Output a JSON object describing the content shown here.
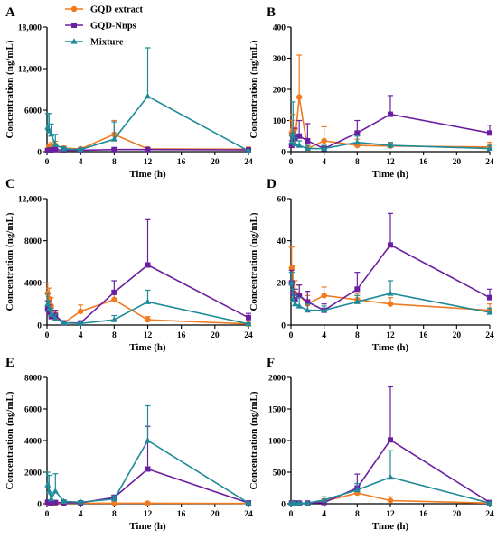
{
  "series_styles": [
    {
      "name": "GQD extract",
      "color": "#f07a1f",
      "marker": "circle"
    },
    {
      "name": "GQD-Nnps",
      "color": "#6b1fa0",
      "marker": "square"
    },
    {
      "name": "Mixture",
      "color": "#1f8a99",
      "marker": "triangle"
    }
  ],
  "chart_data": [
    {
      "panel": "A",
      "type": "line",
      "xlabel": "Time (h)",
      "ylabel": "Concentration (ng/mL)",
      "xlim": [
        0,
        24
      ],
      "xticks": [
        0,
        4,
        8,
        12,
        16,
        20,
        24
      ],
      "xtick_labels": [
        "0",
        "4",
        "8",
        "12",
        "16",
        "20",
        "24"
      ],
      "ylim": [
        0,
        18000
      ],
      "yticks": [
        0,
        6000,
        12000,
        18000
      ],
      "ytick_labels": [
        "0",
        "6000",
        "12,000",
        "18,000"
      ],
      "legend": "top-left",
      "series": [
        {
          "name": "GQD extract",
          "x": [
            0.083,
            0.25,
            0.5,
            1,
            2,
            4,
            8,
            12,
            24
          ],
          "y": [
            300,
            700,
            800,
            900,
            500,
            400,
            2500,
            400,
            350
          ],
          "err": [
            200,
            400,
            500,
            600,
            300,
            200,
            2000,
            200,
            300
          ]
        },
        {
          "name": "GQD-Nnps",
          "x": [
            0.083,
            0.25,
            0.5,
            1,
            2,
            4,
            8,
            12,
            24
          ],
          "y": [
            150,
            200,
            250,
            300,
            200,
            200,
            300,
            300,
            250
          ],
          "err": [
            100,
            150,
            150,
            200,
            150,
            100,
            200,
            200,
            150
          ]
        },
        {
          "name": "Mixture",
          "x": [
            0.083,
            0.25,
            0.5,
            1,
            2,
            4,
            8,
            12,
            24
          ],
          "y": [
            3500,
            3000,
            2500,
            1000,
            400,
            300,
            1800,
            8000,
            100
          ],
          "err": [
            2000,
            2500,
            1500,
            1500,
            300,
            200,
            2500,
            7000,
            100
          ]
        }
      ]
    },
    {
      "panel": "B",
      "type": "line",
      "xlabel": "Time (h)",
      "ylabel": "Concentration (ng/mL)",
      "xlim": [
        0,
        24
      ],
      "xticks": [
        0,
        4,
        8,
        12,
        16,
        20,
        24
      ],
      "xtick_labels": [
        "0",
        "4",
        "8",
        "12",
        "16",
        "20",
        "24"
      ],
      "ylim": [
        0,
        400
      ],
      "yticks": [
        0,
        100,
        200,
        300,
        400
      ],
      "ytick_labels": [
        "0",
        "100",
        "200",
        "300",
        "400"
      ],
      "series": [
        {
          "name": "GQD extract",
          "x": [
            0.083,
            0.25,
            0.5,
            1,
            2,
            4,
            8,
            12,
            24
          ],
          "y": [
            60,
            70,
            40,
            175,
            10,
            35,
            20,
            18,
            15
          ],
          "err": [
            40,
            50,
            30,
            135,
            10,
            45,
            20,
            10,
            15
          ]
        },
        {
          "name": "GQD-Nnps",
          "x": [
            0.083,
            0.25,
            0.5,
            1,
            2,
            4,
            8,
            12,
            24
          ],
          "y": [
            20,
            40,
            45,
            50,
            35,
            10,
            60,
            120,
            60
          ],
          "err": [
            15,
            20,
            30,
            50,
            55,
            10,
            40,
            60,
            25
          ]
        },
        {
          "name": "Mixture",
          "x": [
            0.083,
            0.25,
            0.5,
            1,
            2,
            4,
            8,
            12,
            24
          ],
          "y": [
            30,
            60,
            25,
            20,
            10,
            10,
            30,
            20,
            10
          ],
          "err": [
            20,
            100,
            20,
            15,
            10,
            10,
            20,
            10,
            10
          ]
        }
      ]
    },
    {
      "panel": "C",
      "type": "line",
      "xlabel": "Time (h)",
      "ylabel": "Concentration (ng/mL)",
      "xlim": [
        0,
        24
      ],
      "xticks": [
        0,
        4,
        8,
        12,
        16,
        20,
        24
      ],
      "xtick_labels": [
        "0",
        "4",
        "8",
        "12",
        "16",
        "20",
        "24"
      ],
      "ylim": [
        0,
        12000
      ],
      "yticks": [
        0,
        4000,
        8000,
        12000
      ],
      "ytick_labels": [
        "0",
        "4000",
        "8000",
        "12,000"
      ],
      "series": [
        {
          "name": "GQD extract",
          "x": [
            0.083,
            0.25,
            0.5,
            1,
            2,
            4,
            8,
            12,
            24
          ],
          "y": [
            3000,
            2500,
            1800,
            700,
            200,
            1300,
            2400,
            500,
            100
          ],
          "err": [
            1000,
            1000,
            800,
            500,
            200,
            600,
            800,
            300,
            100
          ]
        },
        {
          "name": "GQD-Nnps",
          "x": [
            0.083,
            0.25,
            0.5,
            1,
            2,
            4,
            8,
            12,
            24
          ],
          "y": [
            1500,
            1200,
            800,
            900,
            200,
            200,
            3100,
            5700,
            700
          ],
          "err": [
            800,
            700,
            600,
            500,
            200,
            200,
            1100,
            4300,
            400
          ]
        },
        {
          "name": "Mixture",
          "x": [
            0.083,
            0.25,
            0.5,
            1,
            2,
            4,
            8,
            12,
            24
          ],
          "y": [
            2000,
            1500,
            1000,
            600,
            200,
            150,
            500,
            2200,
            100
          ],
          "err": [
            1000,
            800,
            600,
            400,
            150,
            100,
            400,
            1100,
            100
          ]
        }
      ]
    },
    {
      "panel": "D",
      "type": "line",
      "xlabel": "Time (h)",
      "ylabel": "Concentration (ng/mL)",
      "xlim": [
        0,
        24
      ],
      "xticks": [
        0,
        4,
        8,
        12,
        16,
        20,
        24
      ],
      "xtick_labels": [
        "0",
        "4",
        "8",
        "12",
        "16",
        "20",
        "24"
      ],
      "ylim": [
        0,
        60
      ],
      "yticks": [
        0,
        20,
        40,
        60
      ],
      "ytick_labels": [
        "0",
        "20",
        "40",
        "60"
      ],
      "series": [
        {
          "name": "GQD extract",
          "x": [
            0.083,
            0.25,
            0.5,
            1,
            2,
            4,
            8,
            12,
            24
          ],
          "y": [
            27,
            20,
            15,
            14,
            10,
            14,
            12,
            10,
            7
          ],
          "err": [
            10,
            8,
            6,
            5,
            4,
            4,
            3,
            3,
            3
          ]
        },
        {
          "name": "GQD-Nnps",
          "x": [
            0.083,
            0.25,
            0.5,
            1,
            2,
            4,
            8,
            12,
            24
          ],
          "y": [
            20,
            15,
            12,
            14,
            11,
            7,
            17,
            38,
            13
          ],
          "err": [
            6,
            5,
            5,
            5,
            5,
            3,
            8,
            15,
            4
          ]
        },
        {
          "name": "Mixture",
          "x": [
            0.083,
            0.25,
            0.5,
            1,
            2,
            4,
            8,
            12,
            24
          ],
          "y": [
            20,
            12,
            10,
            9,
            7,
            7,
            11,
            15,
            6
          ],
          "err": [
            5,
            5,
            4,
            4,
            3,
            2,
            3,
            6,
            2
          ]
        }
      ]
    },
    {
      "panel": "E",
      "type": "line",
      "xlabel": "Time (h)",
      "ylabel": "Concentration (ng/mL)",
      "xlim": [
        0,
        24
      ],
      "xticks": [
        0,
        4,
        8,
        12,
        16,
        20,
        24
      ],
      "xtick_labels": [
        "0",
        "4",
        "8",
        "12",
        "16",
        "20",
        "24"
      ],
      "ylim": [
        0,
        8000
      ],
      "yticks": [
        0,
        2000,
        4000,
        6000,
        8000
      ],
      "ytick_labels": [
        "0",
        "2000",
        "4000",
        "6000",
        "8000"
      ],
      "series": [
        {
          "name": "GQD extract",
          "x": [
            0.083,
            0.25,
            0.5,
            1,
            2,
            4,
            8,
            12,
            24
          ],
          "y": [
            50,
            40,
            30,
            40,
            30,
            30,
            30,
            30,
            20
          ],
          "err": [
            30,
            30,
            20,
            30,
            20,
            20,
            20,
            20,
            10
          ]
        },
        {
          "name": "GQD-Nnps",
          "x": [
            0.083,
            0.25,
            0.5,
            1,
            2,
            4,
            8,
            12,
            24
          ],
          "y": [
            100,
            80,
            60,
            80,
            60,
            60,
            400,
            2200,
            50
          ],
          "err": [
            60,
            50,
            40,
            50,
            40,
            40,
            150,
            2700,
            30
          ]
        },
        {
          "name": "Mixture",
          "x": [
            0.083,
            0.25,
            0.5,
            1,
            2,
            4,
            8,
            12,
            24
          ],
          "y": [
            1200,
            800,
            300,
            800,
            150,
            100,
            300,
            4000,
            50
          ],
          "err": [
            800,
            1000,
            300,
            1100,
            100,
            80,
            200,
            2200,
            30
          ]
        }
      ]
    },
    {
      "panel": "F",
      "type": "line",
      "xlabel": "Time (h)",
      "ylabel": "Concentration (ng/mL)",
      "xlim": [
        0,
        24
      ],
      "xticks": [
        0,
        4,
        8,
        12,
        16,
        20,
        24
      ],
      "xtick_labels": [
        "0",
        "4",
        "8",
        "12",
        "16",
        "20",
        "24"
      ],
      "ylim": [
        0,
        2000
      ],
      "yticks": [
        0,
        500,
        1000,
        1500,
        2000
      ],
      "ytick_labels": [
        "0",
        "500",
        "1000",
        "1500",
        "2000"
      ],
      "series": [
        {
          "name": "GQD extract",
          "x": [
            0.083,
            0.25,
            0.5,
            1,
            2,
            4,
            8,
            12,
            24
          ],
          "y": [
            10,
            15,
            10,
            10,
            10,
            40,
            170,
            50,
            10
          ],
          "err": [
            10,
            10,
            10,
            10,
            10,
            40,
            60,
            60,
            10
          ]
        },
        {
          "name": "GQD-Nnps",
          "x": [
            0.083,
            0.25,
            0.5,
            1,
            2,
            4,
            8,
            12,
            24
          ],
          "y": [
            10,
            10,
            10,
            10,
            10,
            20,
            250,
            1010,
            20
          ],
          "err": [
            10,
            10,
            10,
            10,
            10,
            30,
            220,
            840,
            20
          ]
        },
        {
          "name": "Mixture",
          "x": [
            0.083,
            0.25,
            0.5,
            1,
            2,
            4,
            8,
            12,
            24
          ],
          "y": [
            10,
            10,
            10,
            10,
            10,
            60,
            220,
            420,
            10
          ],
          "err": [
            10,
            10,
            10,
            10,
            10,
            50,
            100,
            420,
            10
          ]
        }
      ]
    }
  ]
}
